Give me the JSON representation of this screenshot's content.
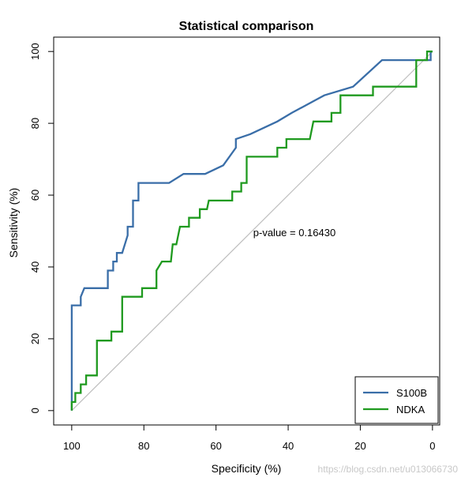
{
  "chart_data": {
    "type": "line",
    "title": "Statistical comparison",
    "xlabel": "Specificity (%)",
    "ylabel": "Sensitivity (%)",
    "xlim": [
      105,
      -2
    ],
    "ylim": [
      -4,
      104
    ],
    "x_reversed": true,
    "xticks": [
      100,
      80,
      60,
      40,
      20,
      0
    ],
    "yticks": [
      0,
      20,
      40,
      60,
      80,
      100
    ],
    "diagonal": {
      "color": "#bebebe"
    },
    "legend_position": "bottom-right",
    "annotation": "p-value = 0.16430",
    "series": [
      {
        "name": "S100B",
        "color": "#3a6ea8",
        "points": [
          [
            100,
            0
          ],
          [
            100,
            29.3
          ],
          [
            97.5,
            29.3
          ],
          [
            97.5,
            31.7
          ],
          [
            96.5,
            34.1
          ],
          [
            90,
            34.1
          ],
          [
            90,
            39
          ],
          [
            88.5,
            39
          ],
          [
            88.5,
            41.5
          ],
          [
            87.5,
            41.5
          ],
          [
            87.5,
            43.9
          ],
          [
            86,
            43.9
          ],
          [
            84.5,
            48.8
          ],
          [
            84.5,
            51.2
          ],
          [
            83,
            51.2
          ],
          [
            83,
            58.5
          ],
          [
            81.5,
            58.5
          ],
          [
            81.5,
            63.4
          ],
          [
            73,
            63.4
          ],
          [
            69,
            65.9
          ],
          [
            63,
            65.9
          ],
          [
            58,
            68.3
          ],
          [
            54.5,
            73.2
          ],
          [
            54.5,
            75.6
          ],
          [
            50.5,
            77
          ],
          [
            43,
            80.5
          ],
          [
            39,
            82.9
          ],
          [
            30,
            87.8
          ],
          [
            22,
            90.2
          ],
          [
            14,
            97.6
          ],
          [
            0.5,
            97.6
          ],
          [
            0.5,
            100
          ],
          [
            0,
            100
          ]
        ]
      },
      {
        "name": "NDKA",
        "color": "#1f9a1f",
        "points": [
          [
            100,
            0
          ],
          [
            100,
            2.4
          ],
          [
            99,
            2.4
          ],
          [
            99,
            4.9
          ],
          [
            97.5,
            4.9
          ],
          [
            97.5,
            7.3
          ],
          [
            96,
            7.3
          ],
          [
            96,
            9.8
          ],
          [
            93,
            9.8
          ],
          [
            93,
            19.5
          ],
          [
            89,
            19.5
          ],
          [
            89,
            22
          ],
          [
            86,
            22
          ],
          [
            86,
            31.7
          ],
          [
            80.5,
            31.7
          ],
          [
            80.5,
            34.1
          ],
          [
            76.5,
            34.1
          ],
          [
            76.5,
            39
          ],
          [
            75,
            41.5
          ],
          [
            72.5,
            41.5
          ],
          [
            72,
            46.3
          ],
          [
            71,
            46.3
          ],
          [
            70,
            51.2
          ],
          [
            67.5,
            51.2
          ],
          [
            67.5,
            53.7
          ],
          [
            64.5,
            53.7
          ],
          [
            64.5,
            56.1
          ],
          [
            62.5,
            56.1
          ],
          [
            62,
            58.5
          ],
          [
            55.5,
            58.5
          ],
          [
            55.5,
            61
          ],
          [
            53,
            61
          ],
          [
            53,
            63.4
          ],
          [
            51.5,
            63.4
          ],
          [
            51.5,
            70.7
          ],
          [
            43,
            70.7
          ],
          [
            43,
            73.2
          ],
          [
            40.5,
            73.2
          ],
          [
            40.5,
            75.6
          ],
          [
            34,
            75.6
          ],
          [
            33,
            80.5
          ],
          [
            28,
            80.5
          ],
          [
            28,
            82.9
          ],
          [
            25.5,
            82.9
          ],
          [
            25.5,
            87.8
          ],
          [
            16.5,
            87.8
          ],
          [
            16.5,
            90.2
          ],
          [
            4.5,
            90.2
          ],
          [
            4.5,
            97.6
          ],
          [
            1.5,
            97.6
          ],
          [
            1.5,
            100
          ],
          [
            0,
            100
          ]
        ]
      }
    ]
  },
  "watermark": "https://blog.csdn.net/u013066730"
}
